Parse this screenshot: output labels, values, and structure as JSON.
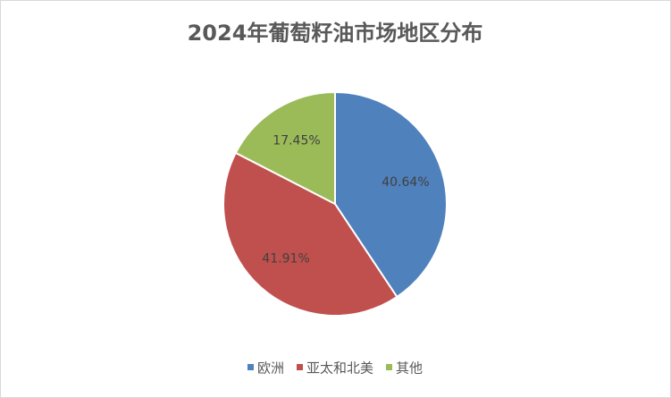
{
  "chart_data": {
    "type": "pie",
    "title": "2024年葡萄籽油市场地区分布",
    "categories": [
      "欧洲",
      "亚太和北美",
      "其他"
    ],
    "values": [
      40.64,
      41.91,
      17.45
    ],
    "value_labels": [
      "40.64%",
      "41.91%",
      "17.45%"
    ],
    "colors": [
      "#4f81bd",
      "#c0504d",
      "#9bbb59"
    ],
    "legend": "bottom"
  }
}
